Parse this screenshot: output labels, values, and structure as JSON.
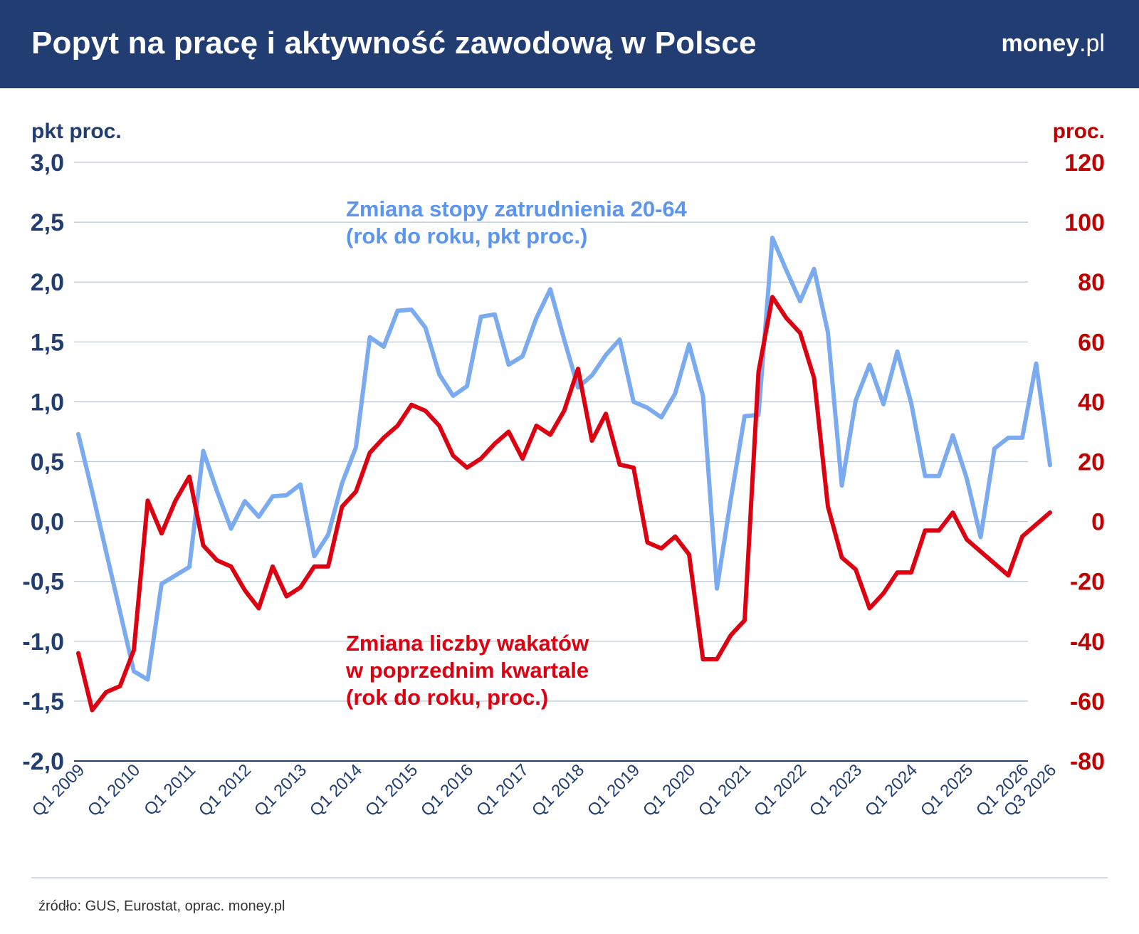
{
  "header": {
    "title": "Popyt na pracę i aktywność zawodową w Polsce",
    "logo_brand": "money",
    "logo_tld": ".pl"
  },
  "footer": {
    "source": "źródło: GUS, Eurostat, oprac. money.pl"
  },
  "colors": {
    "header_bg": "#213d72",
    "left_axis": "#213d72",
    "right_axis": "#c00000",
    "employment_series": "#7aaaf0",
    "vacancies_series": "#dd0010",
    "grid": "#b9c3d2"
  },
  "chart_data": {
    "type": "line",
    "title": "Popyt na pracę i aktywność zawodową w Polsce",
    "grid": true,
    "x_tick_labels": [
      "Q1 2009",
      "Q1 2010",
      "Q1 2011",
      "Q1 2012",
      "Q1 2013",
      "Q1 2014",
      "Q1 2015",
      "Q1 2016",
      "Q1 2017",
      "Q1 2018",
      "Q1 2019",
      "Q1 2020",
      "Q1 2021",
      "Q1 2022",
      "Q1 2023",
      "Q1 2024",
      "Q1 2025",
      "Q1 2026",
      "Q3 2026"
    ],
    "x_tick_quarter_index": [
      0,
      4,
      8,
      12,
      16,
      20,
      24,
      28,
      32,
      36,
      40,
      44,
      48,
      52,
      56,
      60,
      64,
      68,
      70
    ],
    "left_axis": {
      "unit": "pkt proc.",
      "ylim": [
        -2.0,
        3.0
      ],
      "ticks": [
        "-2,0",
        "-1,5",
        "-1,0",
        "-0,5",
        "0,0",
        "0,5",
        "1,0",
        "1,5",
        "2,0",
        "2,5",
        "3,0"
      ]
    },
    "right_axis": {
      "unit": "proc.",
      "ylim": [
        -80,
        120
      ],
      "ticks": [
        "-80",
        "-60",
        "-40",
        "-20",
        "0",
        "20",
        "40",
        "60",
        "80",
        "100",
        "120"
      ]
    },
    "series": [
      {
        "name": "Zmiana stopy zatrudnienia 20-64",
        "annotation_line1": "Zmiana stopy zatrudnienia 20-64",
        "annotation_line2": "(rok do roku, pkt proc.)",
        "axis": "left",
        "start_quarter_index": 0,
        "values": [
          0.73,
          0.25,
          -0.25,
          -0.75,
          -1.25,
          -1.32,
          -0.52,
          -0.45,
          -0.38,
          0.59,
          0.25,
          -0.06,
          0.17,
          0.04,
          0.21,
          0.22,
          0.31,
          -0.29,
          -0.11,
          0.32,
          0.62,
          1.54,
          1.46,
          1.76,
          1.77,
          1.62,
          1.23,
          1.05,
          1.13,
          1.71,
          1.73,
          1.31,
          1.38,
          1.7,
          1.94,
          1.52,
          1.12,
          1.22,
          1.39,
          1.52,
          1.0,
          0.95,
          0.87,
          1.07,
          1.48,
          1.05,
          -0.56,
          0.18,
          0.88,
          0.89,
          2.37,
          2.1,
          1.84,
          2.11,
          1.58,
          0.3,
          1.01,
          1.31,
          0.98,
          1.42,
          0.99,
          0.38,
          0.38,
          0.72,
          0.36,
          -0.13,
          0.61,
          0.7,
          0.7,
          1.32,
          0.47
        ]
      },
      {
        "name": "Zmiana liczby wakatów w poprzednim kwartale",
        "annotation_line1": "Zmiana liczby wakatów",
        "annotation_line2": "w poprzednim kwartale",
        "annotation_line3": "(rok do roku, proc.)",
        "axis": "right",
        "start_quarter_index": 0,
        "values": [
          -44,
          -63,
          -57,
          -55,
          -43,
          7,
          -4,
          7,
          15,
          -8,
          -13,
          -15,
          -23,
          -29,
          -15,
          -25,
          -22,
          -15,
          -15,
          5,
          10,
          23,
          28,
          32,
          39,
          37,
          32,
          22,
          18,
          21,
          26,
          30,
          21,
          32,
          29,
          37,
          51,
          27,
          36,
          19,
          18,
          -7,
          -9,
          -5,
          -11,
          -46,
          -46,
          -38,
          -33,
          50,
          75,
          68,
          63,
          48,
          5,
          -12,
          -16,
          -29,
          -24,
          -17,
          -17,
          -3,
          -3,
          3,
          -6,
          -10,
          -14,
          -18,
          -5,
          -1,
          3
        ]
      }
    ]
  }
}
